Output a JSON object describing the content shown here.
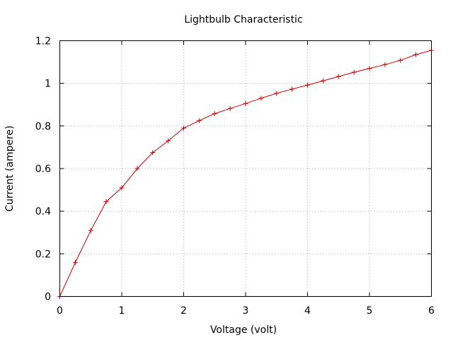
{
  "chart_data": {
    "type": "line",
    "title": "Lightbulb Characteristic",
    "xlabel": "Voltage (volt)",
    "ylabel": "Current (ampere)",
    "xlim": [
      0,
      6
    ],
    "ylim": [
      0,
      1.2
    ],
    "xticks": [
      0,
      1,
      2,
      3,
      4,
      5,
      6
    ],
    "yticks": [
      0,
      0.2,
      0.4,
      0.6,
      0.8,
      1,
      1.2
    ],
    "grid": true,
    "legend": "none",
    "series": [
      {
        "color": "#cc0000",
        "marker": "plus",
        "points": [
          [
            0,
            0
          ],
          [
            0.25,
            0.16
          ],
          [
            0.5,
            0.31
          ],
          [
            0.75,
            0.445
          ],
          [
            1.0,
            0.51
          ],
          [
            1.25,
            0.6
          ],
          [
            1.5,
            0.675
          ],
          [
            1.75,
            0.73
          ],
          [
            2.0,
            0.79
          ],
          [
            2.25,
            0.825
          ],
          [
            2.5,
            0.858
          ],
          [
            2.75,
            0.882
          ],
          [
            3.0,
            0.905
          ],
          [
            3.25,
            0.93
          ],
          [
            3.5,
            0.953
          ],
          [
            3.75,
            0.973
          ],
          [
            4.0,
            0.992
          ],
          [
            4.25,
            1.012
          ],
          [
            4.5,
            1.032
          ],
          [
            4.75,
            1.052
          ],
          [
            5.0,
            1.07
          ],
          [
            5.25,
            1.088
          ],
          [
            5.5,
            1.108
          ],
          [
            5.75,
            1.135
          ],
          [
            6.0,
            1.155
          ]
        ]
      }
    ]
  }
}
